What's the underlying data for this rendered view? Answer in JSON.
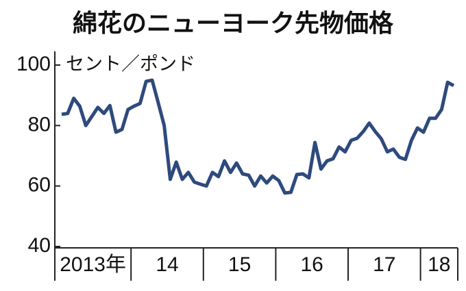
{
  "chart_data": {
    "type": "line",
    "title": "綿花のニューヨーク先物価格",
    "y_label": "セント／ポンド",
    "categories": [
      "2013年",
      null,
      null,
      null,
      null,
      null,
      null,
      null,
      null,
      null,
      null,
      null,
      "14",
      null,
      null,
      null,
      null,
      null,
      null,
      null,
      null,
      null,
      null,
      null,
      "15",
      null,
      null,
      null,
      null,
      null,
      null,
      null,
      null,
      null,
      null,
      null,
      "16",
      null,
      null,
      null,
      null,
      null,
      null,
      null,
      null,
      null,
      null,
      null,
      "17",
      null,
      null,
      null,
      null,
      null,
      null,
      null,
      null,
      null,
      null,
      null,
      "18",
      null,
      null,
      null,
      null,
      null
    ],
    "series": [
      {
        "color": "#2e4a7d",
        "values": [
          83.7,
          84,
          89,
          86.4,
          80,
          83,
          86,
          84,
          86.6,
          77.8,
          78.7,
          85.3,
          86.4,
          87.3,
          94.6,
          95,
          87.6,
          80,
          62.2,
          67.9,
          62.2,
          64.5,
          61.3,
          60.6,
          60,
          64.5,
          63.1,
          68.3,
          64.5,
          67.6,
          64,
          63.6,
          60,
          63.3,
          61,
          63.3,
          61.8,
          57.7,
          57.9,
          63.8,
          64,
          62.7,
          74.4,
          65.6,
          68.3,
          69,
          72.9,
          71.3,
          75.1,
          75.8,
          78,
          80.8,
          78,
          75.6,
          71.3,
          72.2,
          69.5,
          68.8,
          75.1,
          79.2,
          77.8,
          82.4,
          82.4,
          85.3,
          94.3,
          93.2
        ]
      }
    ],
    "ylim": [
      40,
      100
    ],
    "yticks": [
      40,
      60,
      80,
      100
    ]
  }
}
